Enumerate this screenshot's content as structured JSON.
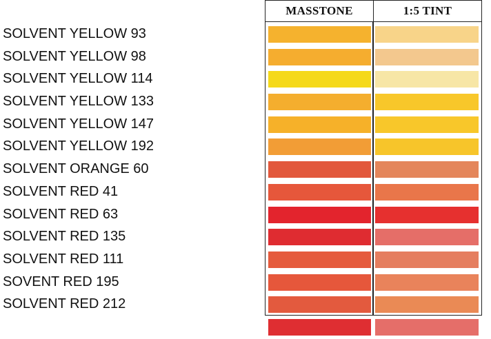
{
  "table": {
    "masstone_header": "MASSTONE",
    "tint_header": "1:5 TINT"
  },
  "rows": [
    {
      "name": "SOLVENT YELLOW 93",
      "masstone": "#f5b22e",
      "tint": "#f8d489"
    },
    {
      "name": "SOLVENT YELLOW 98",
      "masstone": "#f5ad2f",
      "tint": "#f3c88e"
    },
    {
      "name": "SOLVENT YELLOW 114",
      "masstone": "#f5d91a",
      "tint": "#f7e6a6"
    },
    {
      "name": "SOLVENT YELLOW 133",
      "masstone": "#f4ae2e",
      "tint": "#f8c72a"
    },
    {
      "name": "SOLVENT YELLOW 147",
      "masstone": "#f6b129",
      "tint": "#f8c72a"
    },
    {
      "name": "SOLVENT YELLOW 192",
      "masstone": "#f29d36",
      "tint": "#f7c52a"
    },
    {
      "name": "SOLVENT ORANGE 60",
      "masstone": "#e2583c",
      "tint": "#e4865b"
    },
    {
      "name": "SOLVENT RED 41",
      "masstone": "#e6573b",
      "tint": "#e9764a"
    },
    {
      "name": "SOLVENT RED 63",
      "masstone": "#e3242d",
      "tint": "#e6302f"
    },
    {
      "name": "SOLVENT RED 135",
      "masstone": "#df2c31",
      "tint": "#e56e68"
    },
    {
      "name": "SOLVENT RED 111",
      "masstone": "#e55b3d",
      "tint": "#e57e5f"
    },
    {
      "name": "SOVENT RED 195",
      "masstone": "#e6573b",
      "tint": "#e9835b"
    },
    {
      "name": "SOLVENT RED 212",
      "masstone": "#e35a3e",
      "tint": "#ea8a55"
    },
    {
      "name": "",
      "masstone": "#df2e32",
      "tint": "#e56e69"
    }
  ]
}
